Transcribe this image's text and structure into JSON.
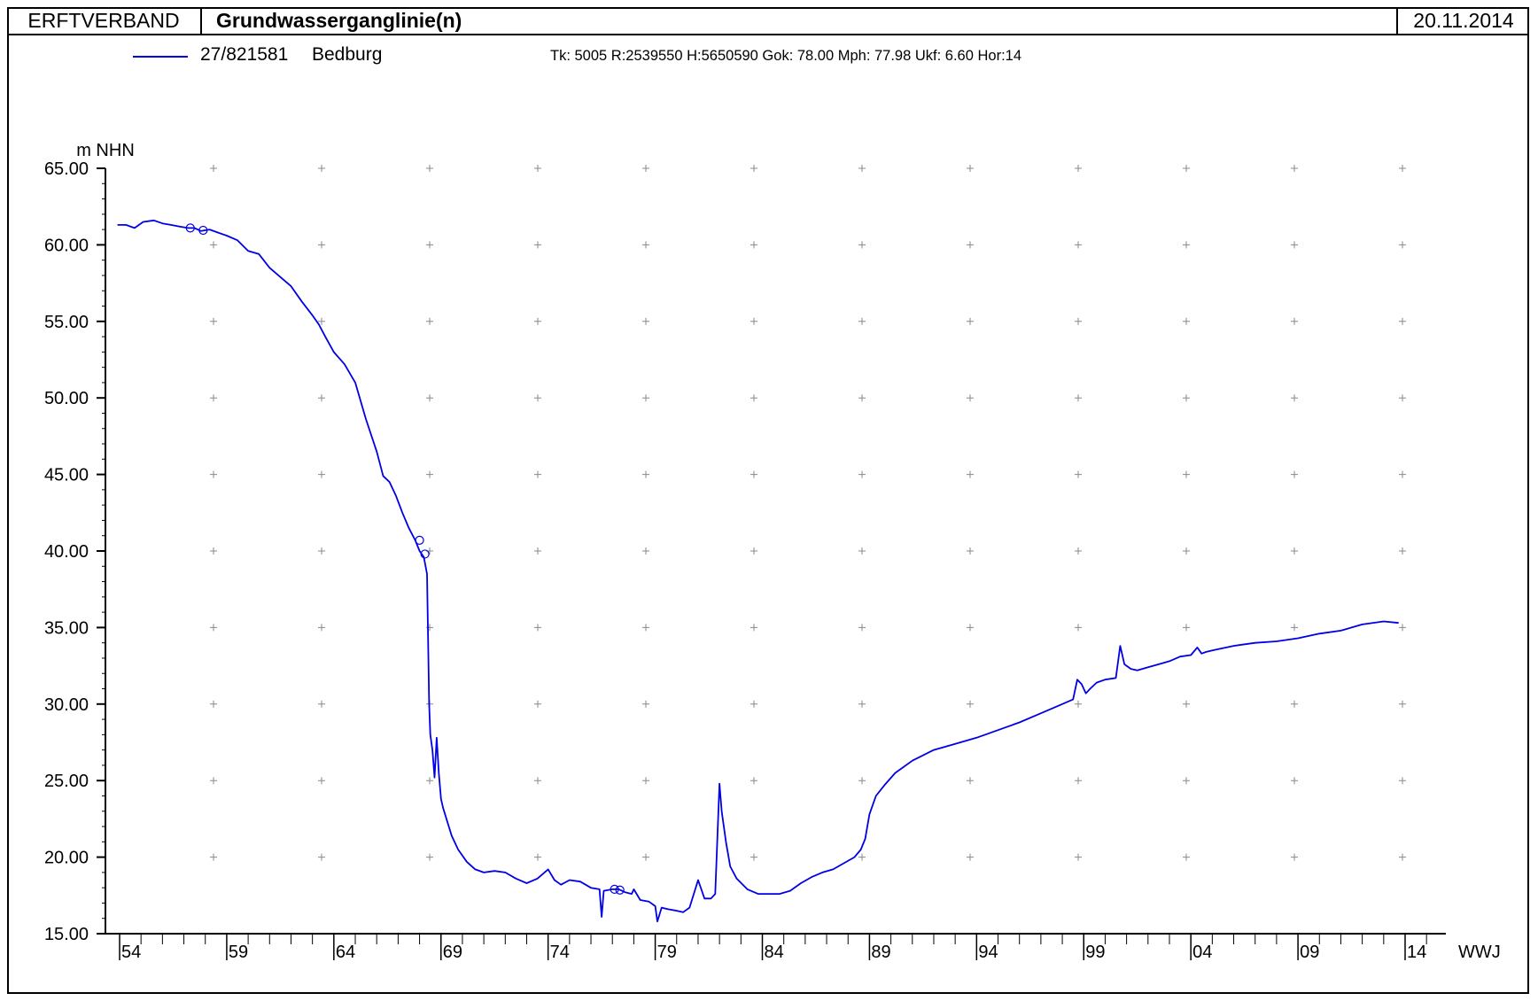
{
  "header": {
    "organization": "ERFTVERBAND",
    "title": "Grundwasserganglinie(n)",
    "date": "20.11.2014"
  },
  "legend": {
    "series_id": "27/821581",
    "series_location": "Bedburg",
    "station_info": "Tk: 5005 R:2539550 H:5650590 Gok:  78.00 Mph:  77.98 Ukf:   6.60 Hor:14"
  },
  "colors": {
    "series": "#0000e6",
    "axis": "#000000",
    "grid_marker": "#888888"
  },
  "chart_data": {
    "type": "line",
    "ylabel": "m NHN",
    "xlabel": "WWJ",
    "ylim": [
      15.0,
      65.0
    ],
    "yticks": [
      "15.00",
      "20.00",
      "25.00",
      "30.00",
      "35.00",
      "40.00",
      "45.00",
      "50.00",
      "55.00",
      "60.00",
      "65.00"
    ],
    "xlim": [
      1953.6,
      2016.0
    ],
    "xticks": [
      {
        "year": 1954,
        "label": "54"
      },
      {
        "year": 1959,
        "label": "59"
      },
      {
        "year": 1964,
        "label": "64"
      },
      {
        "year": 1969,
        "label": "69"
      },
      {
        "year": 1974,
        "label": "74"
      },
      {
        "year": 1979,
        "label": "79"
      },
      {
        "year": 1984,
        "label": "84"
      },
      {
        "year": 1989,
        "label": "89"
      },
      {
        "year": 1994,
        "label": "94"
      },
      {
        "year": 1999,
        "label": "99"
      },
      {
        "year": 2004,
        "label": "04"
      },
      {
        "year": 2009,
        "label": "09"
      },
      {
        "year": 2014,
        "label": "14"
      }
    ],
    "grid": "plus-markers",
    "series": [
      {
        "name": "27/821581 Bedburg",
        "x": [
          1953.9,
          1954.3,
          1954.7,
          1955.1,
          1955.6,
          1956.0,
          1956.4,
          1956.8,
          1957.2,
          1957.5,
          1957.8,
          1958.2,
          1958.6,
          1959.0,
          1959.5,
          1960.0,
          1960.5,
          1961.0,
          1961.5,
          1962.0,
          1962.5,
          1963.0,
          1963.3,
          1963.6,
          1964.0,
          1964.5,
          1965.0,
          1965.5,
          1966.0,
          1966.3,
          1966.6,
          1966.9,
          1967.2,
          1967.5,
          1967.8,
          1968.0,
          1968.2,
          1968.35,
          1968.45,
          1968.5,
          1968.6,
          1968.7,
          1968.8,
          1968.9,
          1969.0,
          1969.1,
          1969.3,
          1969.5,
          1969.8,
          1970.2,
          1970.6,
          1971.0,
          1971.5,
          1972.0,
          1972.5,
          1973.0,
          1973.5,
          1974.0,
          1974.3,
          1974.6,
          1975.0,
          1975.5,
          1976.0,
          1976.4,
          1976.5,
          1976.6,
          1977.0,
          1977.3,
          1977.6,
          1977.9,
          1978.0,
          1978.3,
          1978.7,
          1979.0,
          1979.1,
          1979.3,
          1979.6,
          1980.0,
          1980.3,
          1980.6,
          1981.0,
          1981.3,
          1981.6,
          1981.8,
          1982.0,
          1982.1,
          1982.3,
          1982.5,
          1982.8,
          1983.3,
          1983.8,
          1984.3,
          1984.8,
          1985.3,
          1985.8,
          1986.3,
          1986.8,
          1987.3,
          1987.8,
          1988.3,
          1988.6,
          1988.8,
          1989.0,
          1989.3,
          1989.7,
          1990.2,
          1991.0,
          1992.0,
          1993.0,
          1994.0,
          1995.0,
          1996.0,
          1997.0,
          1998.0,
          1998.5,
          1998.7,
          1998.9,
          1999.1,
          1999.3,
          1999.6,
          2000.0,
          2000.5,
          2000.7,
          2000.9,
          2001.2,
          2001.5,
          2002.0,
          2002.5,
          2003.0,
          2003.5,
          2004.0,
          2004.3,
          2004.5,
          2004.7,
          2005.0,
          2006.0,
          2007.0,
          2008.0,
          2009.0,
          2010.0,
          2011.0,
          2012.0,
          2013.0,
          2013.7
        ],
        "y": [
          61.3,
          61.3,
          61.1,
          61.5,
          61.6,
          61.4,
          61.3,
          61.2,
          61.1,
          61.1,
          60.9,
          61.0,
          60.8,
          60.6,
          60.3,
          59.6,
          59.4,
          58.5,
          57.9,
          57.3,
          56.3,
          55.4,
          54.8,
          54.0,
          53.0,
          52.2,
          51.0,
          48.6,
          46.5,
          44.9,
          44.5,
          43.6,
          42.5,
          41.5,
          40.7,
          40.0,
          39.6,
          38.5,
          30.0,
          28.0,
          27.0,
          25.2,
          27.8,
          25.5,
          23.8,
          23.2,
          22.3,
          21.4,
          20.5,
          19.7,
          19.2,
          19.0,
          19.1,
          19.0,
          18.6,
          18.3,
          18.6,
          19.2,
          18.5,
          18.2,
          18.5,
          18.4,
          18.0,
          17.9,
          16.1,
          17.8,
          17.9,
          17.9,
          17.7,
          17.6,
          17.9,
          17.2,
          17.1,
          16.8,
          15.8,
          16.7,
          16.6,
          16.5,
          16.4,
          16.7,
          18.5,
          17.3,
          17.3,
          17.6,
          24.8,
          23.0,
          21.0,
          19.4,
          18.6,
          17.9,
          17.6,
          17.6,
          17.6,
          17.8,
          18.3,
          18.7,
          19.0,
          19.2,
          19.6,
          20.0,
          20.5,
          21.2,
          22.8,
          24.0,
          24.7,
          25.5,
          26.3,
          27.0,
          27.4,
          27.8,
          28.3,
          28.8,
          29.4,
          30.0,
          30.3,
          31.6,
          31.3,
          30.7,
          31.0,
          31.4,
          31.6,
          31.7,
          33.8,
          32.6,
          32.3,
          32.2,
          32.4,
          32.6,
          32.8,
          33.1,
          33.2,
          33.7,
          33.3,
          33.4,
          33.5,
          33.8,
          34.0,
          34.1,
          34.3,
          34.6,
          34.8,
          35.2,
          35.4,
          35.3
        ]
      }
    ],
    "markers": [
      {
        "x": 1957.3,
        "y": 61.1
      },
      {
        "x": 1957.9,
        "y": 60.95
      },
      {
        "x": 1968.0,
        "y": 40.7
      },
      {
        "x": 1968.25,
        "y": 39.8
      },
      {
        "x": 1977.1,
        "y": 17.9
      },
      {
        "x": 1977.35,
        "y": 17.85
      }
    ]
  }
}
